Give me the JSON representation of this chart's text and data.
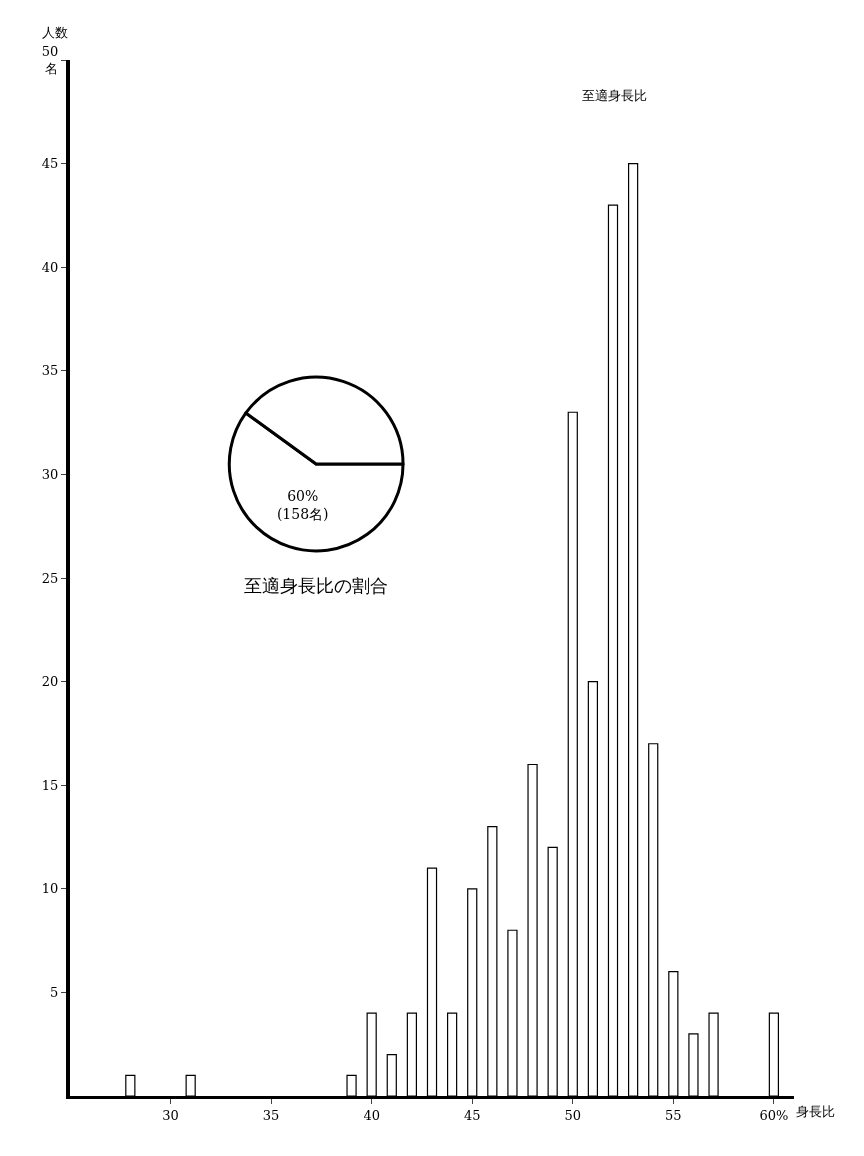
{
  "chart_data": [
    {
      "type": "bar",
      "xlabel": "身長比",
      "ylabel": "人数",
      "x": [
        28,
        31,
        39,
        40,
        41,
        42,
        43,
        44,
        45,
        46,
        47,
        48,
        49,
        50,
        51,
        52,
        53,
        54,
        55,
        56,
        57,
        60
      ],
      "values": [
        1,
        1,
        1,
        4,
        2,
        4,
        11,
        4,
        10,
        13,
        8,
        16,
        12,
        33,
        20,
        43,
        45,
        17,
        6,
        3,
        4,
        4
      ],
      "color": "#ffffff",
      "xlim": [
        25,
        61
      ],
      "xticks": [
        30,
        35,
        40,
        45,
        50,
        55,
        {
          "value": 60,
          "label": "60%"
        }
      ],
      "ylim": [
        0,
        50
      ],
      "yticks": [
        5,
        10,
        15,
        20,
        25,
        30,
        35,
        40,
        45,
        {
          "value": 50,
          "label": "50\n名"
        }
      ],
      "annotations": [
        "至適身長比"
      ],
      "legend": false
    },
    {
      "type": "pie",
      "title": "至適身長比の割合",
      "categories": [
        null,
        null
      ],
      "values": [
        60,
        40
      ],
      "colors": [
        "#ffffff",
        "#ffffff"
      ],
      "value_labels": [
        "60%\n(158名)",
        null
      ],
      "legend": false
    }
  ]
}
